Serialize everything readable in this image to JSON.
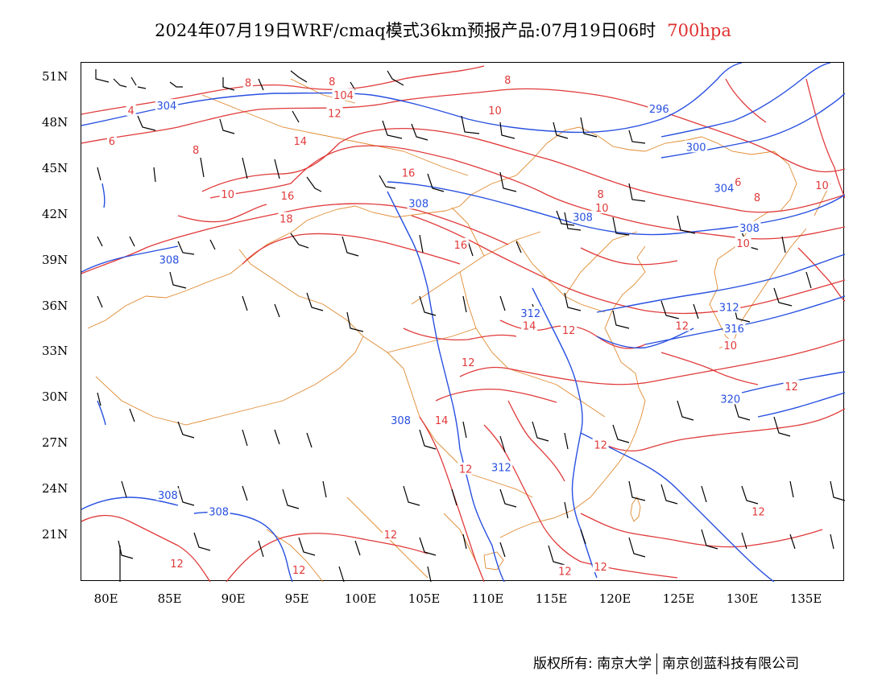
{
  "title": {
    "main": "2024年07月19日WRF/cmaq模式36km预报产品:07月19日06时",
    "level": "700hpa"
  },
  "colors": {
    "geopotential_contour": "#2850e0",
    "temperature_contour": "#e03a3a",
    "border": "#e08a30",
    "wind_barb": "#000000"
  },
  "map": {
    "lon_range": [
      78,
      138
    ],
    "lat_range": [
      18,
      52
    ],
    "lat_labels": [
      "51N",
      "48N",
      "45N",
      "42N",
      "39N",
      "36N",
      "33N",
      "30N",
      "27N",
      "24N",
      "21N"
    ],
    "lon_labels": [
      "80E",
      "85E",
      "90E",
      "95E",
      "100E",
      "105E",
      "110E",
      "115E",
      "120E",
      "125E",
      "130E",
      "135E"
    ]
  },
  "height_labels": [
    {
      "text": "304",
      "lon": 84.7,
      "lat": 49.2
    },
    {
      "text": "308",
      "lon": 104.5,
      "lat": 42.8
    },
    {
      "text": "308",
      "lon": 84.9,
      "lat": 39.1
    },
    {
      "text": "296",
      "lon": 123.4,
      "lat": 49.0
    },
    {
      "text": "300",
      "lon": 126.3,
      "lat": 46.5
    },
    {
      "text": "304",
      "lon": 128.5,
      "lat": 43.8
    },
    {
      "text": "308",
      "lon": 117.4,
      "lat": 41.9
    },
    {
      "text": "308",
      "lon": 130.5,
      "lat": 41.2
    },
    {
      "text": "312",
      "lon": 128.9,
      "lat": 36.0
    },
    {
      "text": "312",
      "lon": 113.3,
      "lat": 35.6
    },
    {
      "text": "316",
      "lon": 129.3,
      "lat": 34.6
    },
    {
      "text": "308",
      "lon": 103.1,
      "lat": 28.6
    },
    {
      "text": "312",
      "lon": 111.0,
      "lat": 25.5
    },
    {
      "text": "320",
      "lon": 129.0,
      "lat": 30.0
    },
    {
      "text": "308",
      "lon": 84.8,
      "lat": 23.7
    },
    {
      "text": "308",
      "lon": 88.8,
      "lat": 22.6
    }
  ],
  "temperature_labels": [
    {
      "text": "4",
      "lon": 81.9,
      "lat": 48.9
    },
    {
      "text": "6",
      "lon": 80.4,
      "lat": 46.9
    },
    {
      "text": "8",
      "lon": 91.1,
      "lat": 50.7
    },
    {
      "text": "8",
      "lon": 97.7,
      "lat": 50.8
    },
    {
      "text": "104",
      "lon": 98.6,
      "lat": 49.9
    },
    {
      "text": "8",
      "lon": 111.5,
      "lat": 50.9
    },
    {
      "text": "12",
      "lon": 97.9,
      "lat": 48.7
    },
    {
      "text": "10",
      "lon": 110.5,
      "lat": 48.9
    },
    {
      "text": "8",
      "lon": 87.0,
      "lat": 46.3
    },
    {
      "text": "14",
      "lon": 95.2,
      "lat": 46.9
    },
    {
      "text": "10",
      "lon": 89.5,
      "lat": 43.4
    },
    {
      "text": "16",
      "lon": 103.7,
      "lat": 44.8
    },
    {
      "text": "16",
      "lon": 94.2,
      "lat": 43.3
    },
    {
      "text": "18",
      "lon": 94.1,
      "lat": 41.8
    },
    {
      "text": "16",
      "lon": 107.8,
      "lat": 40.1
    },
    {
      "text": "8",
      "lon": 118.8,
      "lat": 43.4
    },
    {
      "text": "10",
      "lon": 118.9,
      "lat": 42.5
    },
    {
      "text": "6",
      "lon": 129.6,
      "lat": 44.2
    },
    {
      "text": "8",
      "lon": 131.1,
      "lat": 43.2
    },
    {
      "text": "10",
      "lon": 136.2,
      "lat": 44.0
    },
    {
      "text": "10",
      "lon": 130.0,
      "lat": 40.2
    },
    {
      "text": "14",
      "lon": 113.2,
      "lat": 34.8
    },
    {
      "text": "12",
      "lon": 116.3,
      "lat": 34.5
    },
    {
      "text": "12",
      "lon": 125.2,
      "lat": 34.8
    },
    {
      "text": "10",
      "lon": 129.0,
      "lat": 33.5
    },
    {
      "text": "12",
      "lon": 108.4,
      "lat": 32.4
    },
    {
      "text": "12",
      "lon": 133.8,
      "lat": 30.8
    },
    {
      "text": "14",
      "lon": 106.3,
      "lat": 28.6
    },
    {
      "text": "12",
      "lon": 118.8,
      "lat": 27.0
    },
    {
      "text": "12",
      "lon": 108.2,
      "lat": 25.4
    },
    {
      "text": "12",
      "lon": 131.2,
      "lat": 22.6
    },
    {
      "text": "12",
      "lon": 102.3,
      "lat": 21.1
    },
    {
      "text": "12",
      "lon": 85.5,
      "lat": 19.2
    },
    {
      "text": "12",
      "lon": 95.1,
      "lat": 18.8
    },
    {
      "text": "12",
      "lon": 118.8,
      "lat": 19.0
    },
    {
      "text": "12",
      "lon": 116.0,
      "lat": 18.7
    }
  ],
  "copyright": {
    "left": "版权所有: 南京大学",
    "right": "南京创蓝科技有限公司"
  }
}
